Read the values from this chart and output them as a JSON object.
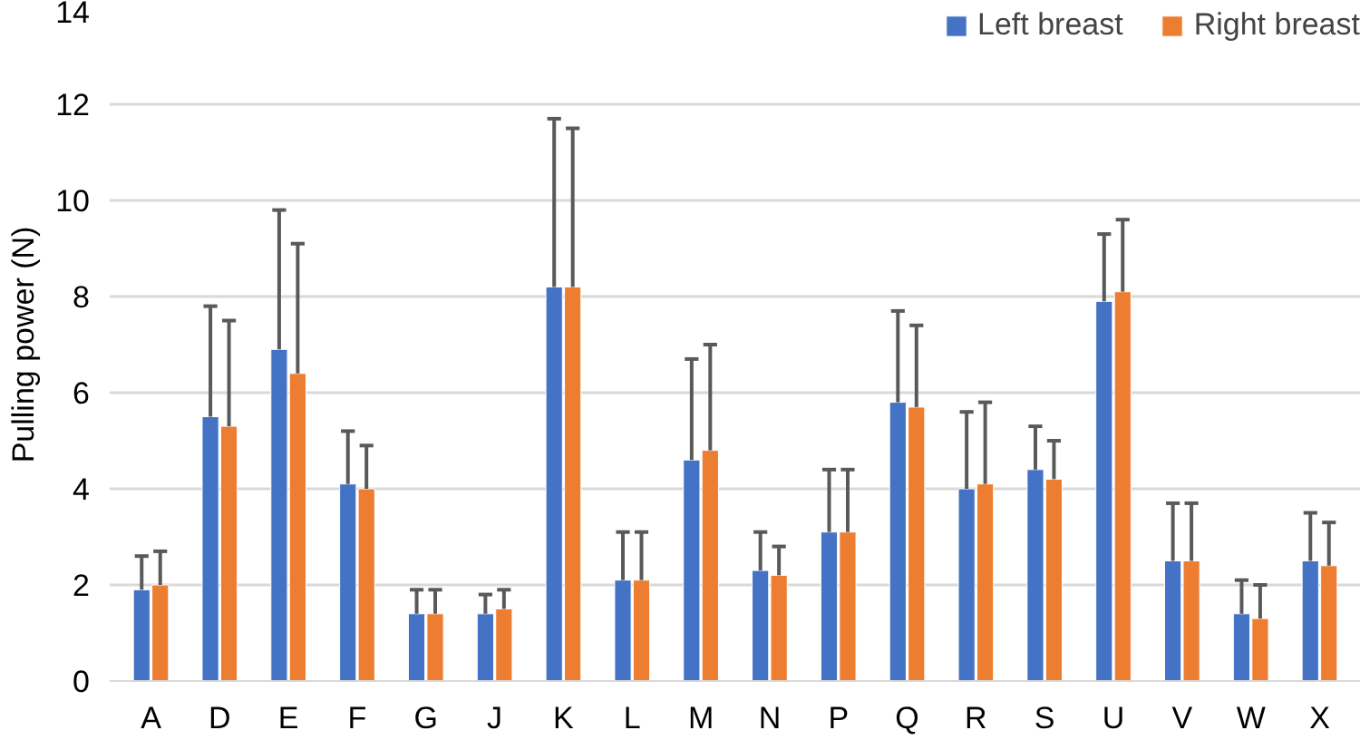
{
  "chart_data": {
    "type": "bar",
    "ylabel": "Pulling power (N)",
    "categories": [
      "A",
      "D",
      "E",
      "F",
      "G",
      "J",
      "K",
      "L",
      "M",
      "N",
      "P",
      "Q",
      "R",
      "S",
      "U",
      "V",
      "W",
      "X"
    ],
    "series": [
      {
        "name": "Left breast",
        "color": "#4472c4",
        "values": [
          1.9,
          5.5,
          6.9,
          4.1,
          1.4,
          1.4,
          8.2,
          2.1,
          4.6,
          2.3,
          3.1,
          5.8,
          4.0,
          4.4,
          7.9,
          2.5,
          1.4,
          2.5
        ],
        "errors": [
          [
            1.9,
            2.6
          ],
          [
            5.5,
            7.8
          ],
          [
            6.9,
            9.8
          ],
          [
            4.1,
            5.2
          ],
          [
            1.4,
            1.9
          ],
          [
            1.4,
            1.8
          ],
          [
            8.2,
            11.7
          ],
          [
            2.1,
            3.1
          ],
          [
            4.6,
            6.7
          ],
          [
            2.3,
            3.1
          ],
          [
            3.1,
            4.4
          ],
          [
            5.8,
            7.7
          ],
          [
            4.0,
            5.6
          ],
          [
            4.4,
            5.3
          ],
          [
            7.9,
            9.3
          ],
          [
            2.5,
            3.7
          ],
          [
            1.4,
            2.1
          ],
          [
            2.5,
            3.5
          ]
        ]
      },
      {
        "name": "Right breast",
        "color": "#ed7d31",
        "values": [
          2.0,
          5.3,
          6.4,
          4.0,
          1.4,
          1.5,
          8.2,
          2.1,
          4.8,
          2.2,
          3.1,
          5.7,
          4.1,
          4.2,
          8.1,
          2.5,
          1.3,
          2.4
        ],
        "errors": [
          [
            2.0,
            2.7
          ],
          [
            5.3,
            7.5
          ],
          [
            6.4,
            9.1
          ],
          [
            4.0,
            4.9
          ],
          [
            1.4,
            1.9
          ],
          [
            1.5,
            1.9
          ],
          [
            8.2,
            11.5
          ],
          [
            2.1,
            3.1
          ],
          [
            4.8,
            7.0
          ],
          [
            2.2,
            2.8
          ],
          [
            3.1,
            4.4
          ],
          [
            5.7,
            7.4
          ],
          [
            4.1,
            5.8
          ],
          [
            4.2,
            5.0
          ],
          [
            8.1,
            9.6
          ],
          [
            2.5,
            3.7
          ],
          [
            1.3,
            2.0
          ],
          [
            2.4,
            3.3
          ]
        ]
      }
    ],
    "ylim": [
      0,
      14
    ],
    "yticks": [
      0,
      2,
      4,
      6,
      8,
      10,
      12,
      14
    ],
    "grid": "y",
    "legend": "top right"
  }
}
